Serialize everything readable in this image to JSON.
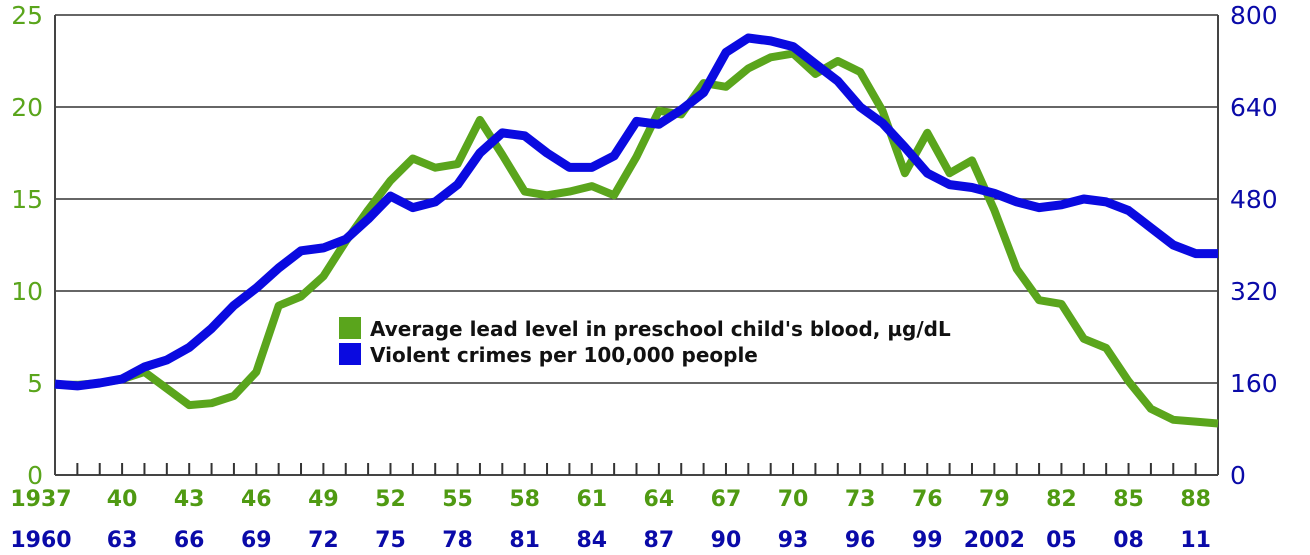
{
  "chart_data": {
    "type": "line",
    "title": "",
    "xlabel": "",
    "ylabel_left": "Average lead level in preschool child's blood, µg/dL",
    "ylabel_right": "Violent crimes per 100,000 people",
    "ylim_left": [
      0,
      25
    ],
    "ylim_right": [
      0,
      800
    ],
    "yticks_left": [
      "0",
      "5",
      "10",
      "15",
      "20",
      "25"
    ],
    "yticks_right": [
      "0",
      "160",
      "320",
      "480",
      "640",
      "800"
    ],
    "xtick_labels_lead": [
      "1937",
      "40",
      "43",
      "46",
      "49",
      "52",
      "55",
      "58",
      "61",
      "64",
      "67",
      "70",
      "73",
      "76",
      "79",
      "82",
      "85",
      "88"
    ],
    "xtick_labels_crime": [
      "1960",
      "63",
      "66",
      "69",
      "72",
      "75",
      "78",
      "81",
      "84",
      "87",
      "90",
      "93",
      "96",
      "99",
      "2002",
      "05",
      "08",
      "11"
    ],
    "grid": true,
    "legend_position": "center",
    "colors": {
      "lead": "#5aa51c",
      "crime": "#0a0ae0",
      "left_axis_text": "#5aa51c",
      "right_axis_text": "#0a0aa8"
    },
    "series": [
      {
        "name": "Average lead level in preschool child's blood, µg/dL",
        "axis": "left",
        "x_years": [
          1937,
          1938,
          1939,
          1940,
          1941,
          1942,
          1943,
          1944,
          1945,
          1946,
          1947,
          1948,
          1949,
          1950,
          1951,
          1952,
          1953,
          1954,
          1955,
          1956,
          1957,
          1958,
          1959,
          1960,
          1961,
          1962,
          1963,
          1964,
          1965,
          1966,
          1967,
          1968,
          1969,
          1970,
          1971,
          1972,
          1973,
          1974,
          1975,
          1976,
          1977,
          1978,
          1979,
          1980,
          1981,
          1982,
          1983,
          1984,
          1985,
          1986,
          1987,
          1988,
          1989
        ],
        "values": [
          4.9,
          4.9,
          5.0,
          5.2,
          5.6,
          4.7,
          3.8,
          3.9,
          4.3,
          5.6,
          9.2,
          9.7,
          10.8,
          12.7,
          14.4,
          16.0,
          17.2,
          16.7,
          16.9,
          19.3,
          17.4,
          15.4,
          15.2,
          15.4,
          15.7,
          15.2,
          17.3,
          19.8,
          19.6,
          21.3,
          21.1,
          22.1,
          22.7,
          22.9,
          21.8,
          22.5,
          21.9,
          19.8,
          16.4,
          18.6,
          16.4,
          17.1,
          14.4,
          11.2,
          9.5,
          9.3,
          7.4,
          6.9,
          5.1,
          3.6,
          3.0,
          2.9,
          2.8
        ]
      },
      {
        "name": "Violent crimes per 100,000 people",
        "axis": "right",
        "x_years": [
          1960,
          1961,
          1962,
          1963,
          1964,
          1965,
          1966,
          1967,
          1968,
          1969,
          1970,
          1971,
          1972,
          1973,
          1974,
          1975,
          1976,
          1977,
          1978,
          1979,
          1980,
          1981,
          1982,
          1983,
          1984,
          1985,
          1986,
          1987,
          1988,
          1989,
          1990,
          1991,
          1992,
          1993,
          1994,
          1995,
          1996,
          1997,
          1998,
          1999,
          2000,
          2001,
          2002,
          2003,
          2004,
          2005,
          2006,
          2007,
          2008,
          2009,
          2010,
          2011,
          2012
        ],
        "values": [
          158,
          155,
          160,
          167,
          188,
          200,
          222,
          255,
          295,
          325,
          360,
          390,
          395,
          410,
          445,
          485,
          465,
          475,
          505,
          560,
          595,
          590,
          560,
          535,
          535,
          555,
          615,
          610,
          635,
          665,
          735,
          760,
          755,
          745,
          715,
          685,
          640,
          612,
          570,
          525,
          505,
          500,
          490,
          475,
          465,
          470,
          480,
          475,
          460,
          430,
          400,
          385,
          385
        ]
      }
    ]
  },
  "legend": {
    "items": [
      {
        "label": "Average lead level in preschool child's blood, µg/dL",
        "color": "#5aa51c"
      },
      {
        "label": "Violent crimes per 100,000 people",
        "color": "#0a0ae0"
      }
    ]
  }
}
